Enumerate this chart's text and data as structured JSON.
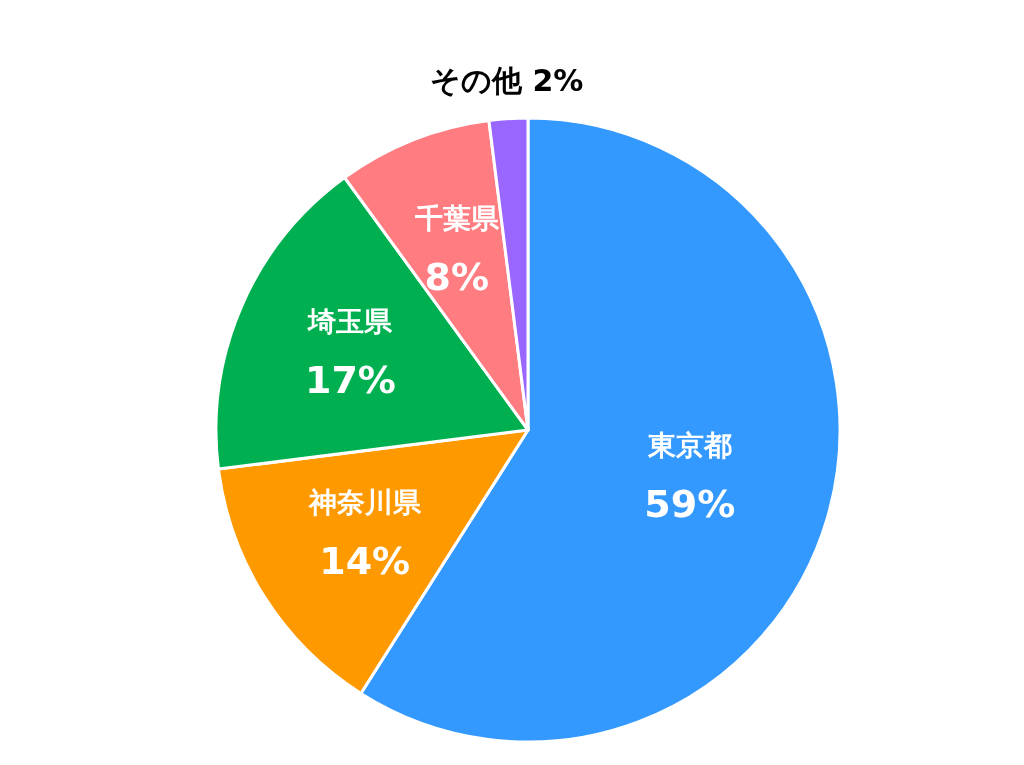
{
  "chart_data": {
    "type": "pie",
    "categories": [
      "東京都",
      "神奈川県",
      "埼玉県",
      "千葉県",
      "その他"
    ],
    "values": [
      59,
      14,
      17,
      8,
      2
    ],
    "colors": [
      "#3399ff",
      "#ff9900",
      "#00b050",
      "#ff7c80",
      "#9966ff"
    ],
    "value_labels": [
      "59%",
      "14%",
      "17%",
      "8%",
      "2%"
    ]
  }
}
